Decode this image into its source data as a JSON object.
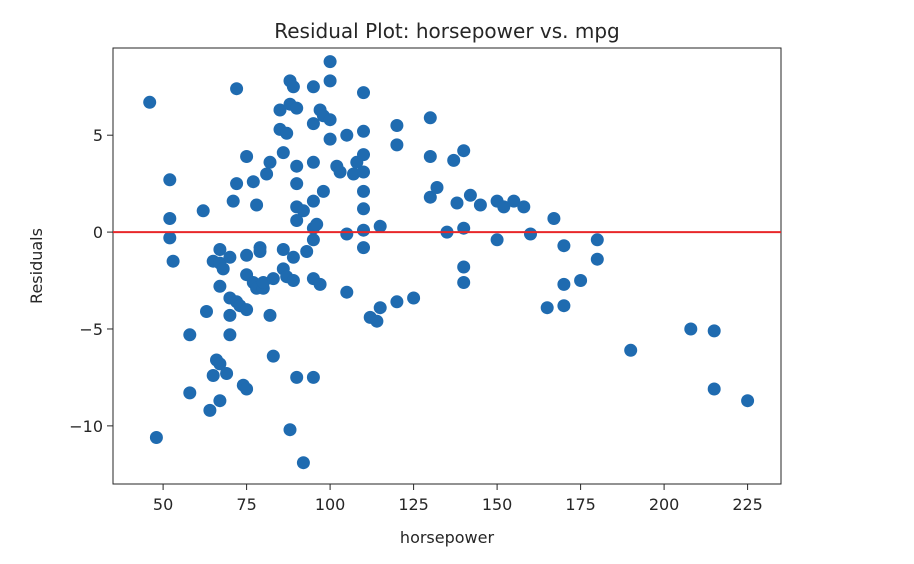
{
  "chart_data": {
    "type": "scatter",
    "title": "Residual Plot: horsepower vs. mpg",
    "xlabel": "horsepower",
    "ylabel": "Residuals",
    "xlim": [
      35,
      235
    ],
    "ylim": [
      -13,
      9.5
    ],
    "xticks": [
      50,
      75,
      100,
      125,
      150,
      175,
      200,
      225
    ],
    "yticks": [
      -10,
      -5,
      0,
      5
    ],
    "ytick_labels": [
      "−10",
      "−5",
      "0",
      "5"
    ],
    "grid": false,
    "reference_line": {
      "y": 0,
      "color": "#e8272a"
    },
    "marker_color": "#1f6bb0",
    "points": [
      [
        46,
        6.7
      ],
      [
        48,
        -10.6
      ],
      [
        52,
        2.7
      ],
      [
        52,
        0.7
      ],
      [
        52,
        -0.3
      ],
      [
        53,
        -1.5
      ],
      [
        58,
        -5.3
      ],
      [
        58,
        -8.3
      ],
      [
        62,
        1.1
      ],
      [
        63,
        -4.1
      ],
      [
        64,
        -9.2
      ],
      [
        65,
        -1.5
      ],
      [
        65,
        -7.4
      ],
      [
        66,
        -6.6
      ],
      [
        67,
        -0.9
      ],
      [
        67,
        -1.6
      ],
      [
        67,
        -2.8
      ],
      [
        67,
        -6.8
      ],
      [
        67,
        -8.7
      ],
      [
        68,
        -1.9
      ],
      [
        69,
        -7.3
      ],
      [
        70,
        -1.3
      ],
      [
        70,
        -3.4
      ],
      [
        70,
        -4.3
      ],
      [
        70,
        -5.3
      ],
      [
        71,
        1.6
      ],
      [
        72,
        7.4
      ],
      [
        72,
        2.5
      ],
      [
        72,
        -3.6
      ],
      [
        73,
        -3.8
      ],
      [
        74,
        -7.9
      ],
      [
        75,
        3.9
      ],
      [
        75,
        -1.2
      ],
      [
        75,
        -2.2
      ],
      [
        75,
        -4.0
      ],
      [
        75,
        -8.1
      ],
      [
        77,
        2.6
      ],
      [
        77,
        -2.6
      ],
      [
        78,
        1.4
      ],
      [
        78,
        -2.9
      ],
      [
        79,
        -0.8
      ],
      [
        79,
        -1.0
      ],
      [
        80,
        -2.9
      ],
      [
        80,
        -2.6
      ],
      [
        81,
        3.0
      ],
      [
        82,
        3.6
      ],
      [
        82,
        -4.3
      ],
      [
        83,
        -2.4
      ],
      [
        83,
        -6.4
      ],
      [
        85,
        6.3
      ],
      [
        85,
        5.3
      ],
      [
        86,
        4.1
      ],
      [
        86,
        -0.9
      ],
      [
        86,
        -1.9
      ],
      [
        87,
        5.1
      ],
      [
        87,
        -2.3
      ],
      [
        88,
        7.8
      ],
      [
        88,
        6.6
      ],
      [
        88,
        -10.2
      ],
      [
        89,
        7.5
      ],
      [
        89,
        -1.3
      ],
      [
        89,
        -2.5
      ],
      [
        90,
        6.4
      ],
      [
        90,
        3.4
      ],
      [
        90,
        2.5
      ],
      [
        90,
        1.3
      ],
      [
        90,
        0.6
      ],
      [
        90,
        -7.5
      ],
      [
        92,
        1.1
      ],
      [
        92,
        -11.9
      ],
      [
        93,
        -1.0
      ],
      [
        95,
        7.5
      ],
      [
        95,
        5.6
      ],
      [
        95,
        3.6
      ],
      [
        95,
        1.6
      ],
      [
        95,
        0.2
      ],
      [
        95,
        -0.4
      ],
      [
        95,
        -2.4
      ],
      [
        95,
        -7.5
      ],
      [
        96,
        0.4
      ],
      [
        97,
        6.3
      ],
      [
        97,
        -2.7
      ],
      [
        98,
        6.0
      ],
      [
        98,
        2.1
      ],
      [
        100,
        8.8
      ],
      [
        100,
        7.8
      ],
      [
        100,
        5.8
      ],
      [
        100,
        4.8
      ],
      [
        102,
        3.4
      ],
      [
        103,
        3.1
      ],
      [
        105,
        5.0
      ],
      [
        105,
        -3.1
      ],
      [
        105,
        -0.1
      ],
      [
        107,
        3.0
      ],
      [
        108,
        3.6
      ],
      [
        110,
        7.2
      ],
      [
        110,
        5.2
      ],
      [
        110,
        4.0
      ],
      [
        110,
        3.1
      ],
      [
        110,
        2.1
      ],
      [
        110,
        1.2
      ],
      [
        110,
        0.1
      ],
      [
        110,
        -0.8
      ],
      [
        112,
        -4.4
      ],
      [
        114,
        -4.6
      ],
      [
        115,
        0.3
      ],
      [
        115,
        -3.9
      ],
      [
        120,
        5.5
      ],
      [
        120,
        4.5
      ],
      [
        120,
        -3.6
      ],
      [
        125,
        -3.4
      ],
      [
        130,
        5.9
      ],
      [
        130,
        3.9
      ],
      [
        130,
        1.8
      ],
      [
        132,
        2.3
      ],
      [
        135,
        0.0
      ],
      [
        137,
        3.7
      ],
      [
        138,
        1.5
      ],
      [
        140,
        4.2
      ],
      [
        140,
        0.2
      ],
      [
        140,
        -1.8
      ],
      [
        140,
        -2.6
      ],
      [
        142,
        1.9
      ],
      [
        145,
        1.4
      ],
      [
        150,
        1.6
      ],
      [
        150,
        -0.4
      ],
      [
        152,
        1.3
      ],
      [
        155,
        1.6
      ],
      [
        158,
        1.3
      ],
      [
        160,
        -0.1
      ],
      [
        165,
        -3.9
      ],
      [
        167,
        0.7
      ],
      [
        170,
        -0.7
      ],
      [
        170,
        -2.7
      ],
      [
        170,
        -3.8
      ],
      [
        175,
        -2.5
      ],
      [
        180,
        -0.4
      ],
      [
        180,
        -1.4
      ],
      [
        190,
        -6.1
      ],
      [
        208,
        -5.0
      ],
      [
        215,
        -5.1
      ],
      [
        215,
        -8.1
      ],
      [
        225,
        -8.7
      ]
    ]
  }
}
